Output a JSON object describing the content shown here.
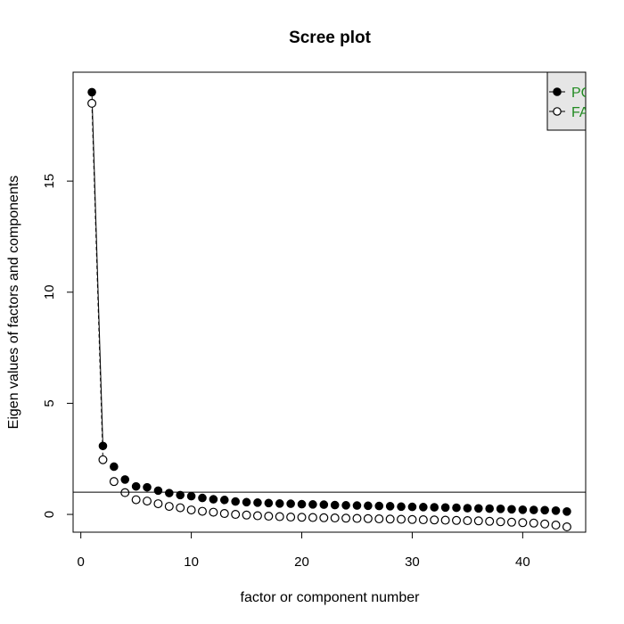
{
  "chart_data": {
    "type": "scatter",
    "title": "Scree plot",
    "xlabel": "factor or component number",
    "ylabel": "Eigen values of factors and components",
    "xlim": [
      -0.7,
      45.7
    ],
    "ylim": [
      -0.8,
      19.9
    ],
    "xticks": [
      0,
      10,
      20,
      30,
      40
    ],
    "yticks": [
      0,
      5,
      10,
      15
    ],
    "reference_line": 1,
    "grid": false,
    "legend": {
      "placement": "top-right",
      "entries": [
        {
          "label": "PC",
          "marker": "filled-circle"
        },
        {
          "label": "FA",
          "marker": "open-circle"
        }
      ],
      "text_color": "#228b22",
      "background": "#e6e6e6"
    },
    "series": [
      {
        "name": "PC",
        "marker": "filled-circle",
        "x": [
          1,
          2,
          3,
          4,
          5,
          6,
          7,
          8,
          9,
          10,
          11,
          12,
          13,
          14,
          15,
          16,
          17,
          18,
          19,
          20,
          21,
          22,
          23,
          24,
          25,
          26,
          27,
          28,
          29,
          30,
          31,
          32,
          33,
          34,
          35,
          36,
          37,
          38,
          39,
          40,
          41,
          42,
          43,
          44
        ],
        "values": [
          19.0,
          3.08,
          2.15,
          1.57,
          1.26,
          1.22,
          1.07,
          0.96,
          0.87,
          0.82,
          0.74,
          0.68,
          0.65,
          0.58,
          0.55,
          0.53,
          0.51,
          0.49,
          0.48,
          0.46,
          0.45,
          0.44,
          0.42,
          0.41,
          0.4,
          0.39,
          0.38,
          0.37,
          0.35,
          0.34,
          0.33,
          0.32,
          0.31,
          0.3,
          0.28,
          0.27,
          0.26,
          0.25,
          0.23,
          0.21,
          0.2,
          0.19,
          0.17,
          0.13
        ]
      },
      {
        "name": "FA",
        "marker": "open-circle",
        "x": [
          1,
          2,
          3,
          4,
          5,
          6,
          7,
          8,
          9,
          10,
          11,
          12,
          13,
          14,
          15,
          16,
          17,
          18,
          19,
          20,
          21,
          22,
          23,
          24,
          25,
          26,
          27,
          28,
          29,
          30,
          31,
          32,
          33,
          34,
          35,
          36,
          37,
          38,
          39,
          40,
          41,
          42,
          43,
          44
        ],
        "values": [
          18.5,
          2.46,
          1.48,
          0.98,
          0.66,
          0.6,
          0.48,
          0.36,
          0.3,
          0.2,
          0.14,
          0.1,
          0.04,
          0.0,
          -0.03,
          -0.06,
          -0.08,
          -0.1,
          -0.12,
          -0.13,
          -0.14,
          -0.15,
          -0.16,
          -0.17,
          -0.18,
          -0.19,
          -0.2,
          -0.21,
          -0.22,
          -0.23,
          -0.24,
          -0.25,
          -0.26,
          -0.27,
          -0.28,
          -0.29,
          -0.31,
          -0.33,
          -0.35,
          -0.37,
          -0.39,
          -0.43,
          -0.48,
          -0.56
        ]
      }
    ]
  }
}
